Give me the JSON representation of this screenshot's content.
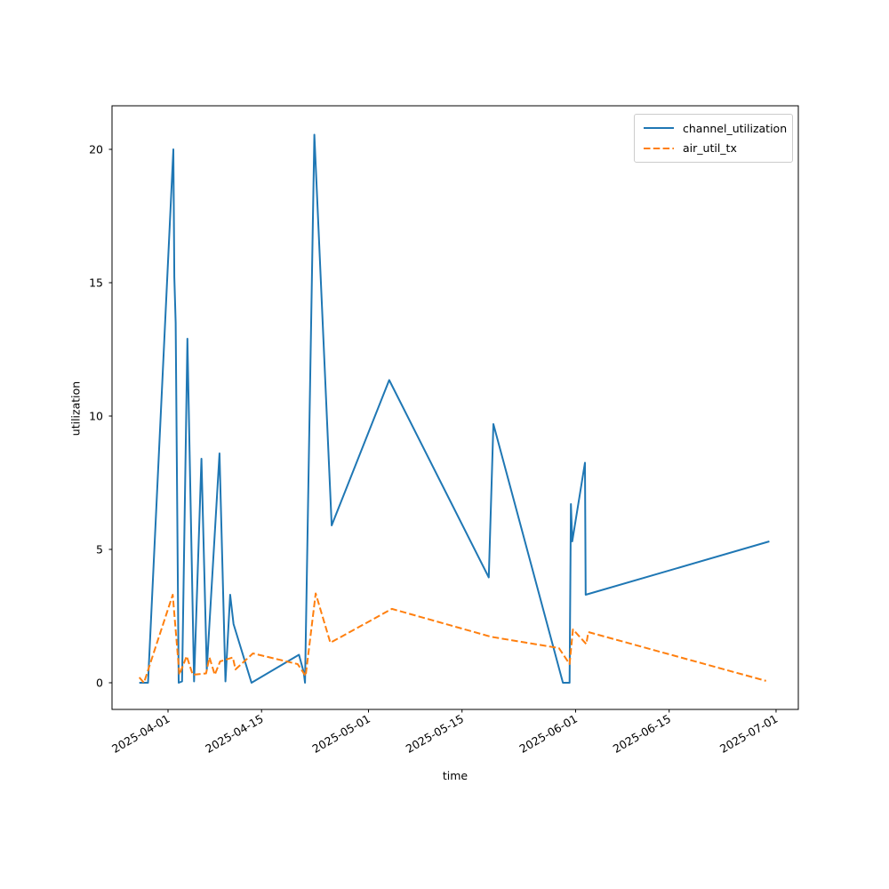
{
  "chart_data": {
    "type": "line",
    "title": "",
    "xlabel": "time",
    "ylabel": "utilization",
    "grid": false,
    "legend_position": "upper right",
    "x_unit": "days since 2025-04-01",
    "x_ticks": [
      {
        "label": "2025-04-01",
        "day": 0
      },
      {
        "label": "2025-04-15",
        "day": 14
      },
      {
        "label": "2025-05-01",
        "day": 30
      },
      {
        "label": "2025-05-15",
        "day": 44
      },
      {
        "label": "2025-06-01",
        "day": 61
      },
      {
        "label": "2025-06-15",
        "day": 75
      },
      {
        "label": "2025-07-01",
        "day": 91
      }
    ],
    "y_ticks": [
      0,
      5,
      10,
      15,
      20
    ],
    "ylim": [
      -1.03,
      21.6
    ],
    "xlim_days": [
      -8.4,
      94.3
    ],
    "series": [
      {
        "name": "channel_utilization",
        "color": "#1f77b4",
        "line_style": "solid",
        "points": [
          [
            -4.3,
            0.0
          ],
          [
            -3.0,
            0.0
          ],
          [
            0.8,
            20.0
          ],
          [
            0.95,
            15.2
          ],
          [
            1.15,
            13.5
          ],
          [
            1.6,
            0.0
          ],
          [
            2.1,
            0.05
          ],
          [
            2.9,
            12.9
          ],
          [
            3.9,
            0.05
          ],
          [
            5.0,
            8.4
          ],
          [
            5.8,
            0.5
          ],
          [
            7.7,
            8.6
          ],
          [
            8.6,
            0.05
          ],
          [
            9.3,
            3.3
          ],
          [
            9.8,
            2.2
          ],
          [
            12.5,
            0.0
          ],
          [
            19.6,
            1.05
          ],
          [
            20.3,
            0.4
          ],
          [
            20.5,
            0.0
          ],
          [
            21.9,
            20.55
          ],
          [
            24.5,
            5.9
          ],
          [
            33.1,
            11.35
          ],
          [
            48.0,
            3.95
          ],
          [
            48.7,
            9.7
          ],
          [
            59.1,
            0.0
          ],
          [
            60.1,
            0.0
          ],
          [
            60.3,
            6.7
          ],
          [
            60.5,
            5.3
          ],
          [
            62.4,
            8.25
          ],
          [
            62.5,
            3.3
          ],
          [
            90.0,
            5.3
          ]
        ]
      },
      {
        "name": "air_util_tx",
        "color": "#ff7f0e",
        "line_style": "dashed",
        "points": [
          [
            -4.3,
            0.2
          ],
          [
            -3.6,
            0.0
          ],
          [
            0.7,
            3.3
          ],
          [
            1.7,
            0.3
          ],
          [
            2.8,
            1.0
          ],
          [
            3.7,
            0.3
          ],
          [
            5.7,
            0.35
          ],
          [
            6.2,
            0.95
          ],
          [
            7.0,
            0.3
          ],
          [
            7.8,
            0.8
          ],
          [
            9.7,
            0.95
          ],
          [
            10.1,
            0.5
          ],
          [
            12.7,
            1.1
          ],
          [
            19.4,
            0.7
          ],
          [
            20.6,
            0.25
          ],
          [
            22.1,
            3.35
          ],
          [
            24.3,
            1.5
          ],
          [
            33.5,
            2.77
          ],
          [
            48.4,
            1.72
          ],
          [
            58.5,
            1.3
          ],
          [
            60.1,
            0.7
          ],
          [
            60.6,
            2.0
          ],
          [
            62.6,
            1.45
          ],
          [
            62.9,
            1.9
          ],
          [
            89.5,
            0.07
          ]
        ]
      }
    ]
  }
}
